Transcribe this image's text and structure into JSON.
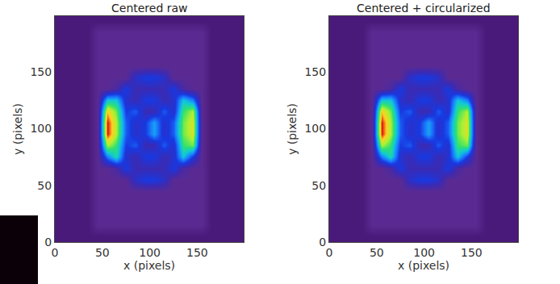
{
  "chart_data": [
    {
      "type": "heatmap",
      "title": "Centered raw",
      "x_label": "x (pixels)",
      "y_label": "y (pixels)",
      "x": [
        5,
        15,
        25,
        35,
        45,
        55,
        65,
        75,
        85,
        95,
        105,
        115,
        125,
        135,
        145,
        155,
        165,
        175,
        185,
        195
      ],
      "y": [
        5,
        15,
        25,
        35,
        45,
        55,
        65,
        75,
        85,
        95,
        105,
        115,
        125,
        135,
        145,
        155,
        165,
        175,
        185,
        195
      ],
      "cells": [
        [
          1.5,
          1.5,
          1.5,
          1.5,
          1.5,
          1.5,
          1.5,
          1.5,
          1.5,
          1.5,
          1.5,
          1.5,
          1.5,
          1.5,
          1.5,
          1.5,
          1.5,
          1.5,
          1.5,
          1.5
        ],
        [
          1.5,
          1.5,
          1.5,
          1.5,
          2,
          2,
          2,
          2,
          2,
          2,
          2,
          2,
          2,
          2,
          2,
          2,
          1.5,
          1.5,
          1.5,
          1.5
        ],
        [
          1.5,
          1.5,
          1.5,
          1.5,
          2,
          2,
          2,
          2,
          2,
          2,
          2,
          2,
          2,
          2,
          2,
          2,
          1.5,
          1.5,
          1.5,
          1.5
        ],
        [
          1.5,
          1.5,
          1.5,
          1.5,
          2,
          2,
          2,
          2,
          2,
          2,
          2,
          2,
          2,
          2,
          2,
          2,
          1.5,
          1.5,
          1.5,
          1.5
        ],
        [
          1.5,
          1.5,
          1.5,
          1.5,
          2,
          2,
          2,
          2,
          2,
          2,
          2,
          2,
          2,
          2,
          2,
          2,
          1.5,
          1.5,
          1.5,
          1.5
        ],
        [
          1.5,
          1.5,
          1.5,
          1.5,
          2,
          2,
          2,
          2,
          3.5,
          4,
          4,
          3.5,
          2,
          2,
          2,
          2,
          1.5,
          1.5,
          1.5,
          1.5
        ],
        [
          1.5,
          1.5,
          1.5,
          1.5,
          2,
          2,
          2.5,
          4,
          3,
          3,
          3,
          3,
          4,
          2.5,
          2,
          2,
          1.5,
          1.5,
          1.5,
          1.5
        ],
        [
          1.5,
          1.5,
          1.5,
          1.5,
          2,
          5,
          6.5,
          3.5,
          3,
          4,
          4,
          3,
          3.5,
          6,
          4,
          2,
          1.5,
          1.5,
          1.5,
          1.5
        ],
        [
          1.5,
          1.5,
          1.5,
          1.5,
          2,
          8,
          7,
          4,
          4.5,
          3,
          3,
          4.5,
          3.5,
          7,
          7.5,
          2,
          1.5,
          1.5,
          1.5,
          1.5
        ],
        [
          1.5,
          1.5,
          1.5,
          1.5,
          2,
          10,
          8,
          4.5,
          3.5,
          4,
          5.5,
          3.5,
          4.5,
          7.5,
          8.5,
          2,
          1.5,
          1.5,
          1.5,
          1.5
        ],
        [
          1.5,
          1.5,
          1.5,
          1.5,
          2,
          10,
          8,
          4.5,
          3.5,
          4,
          5.5,
          3.5,
          4.5,
          7.5,
          8.5,
          2,
          1.5,
          1.5,
          1.5,
          1.5
        ],
        [
          1.5,
          1.5,
          1.5,
          1.5,
          2,
          9,
          7.5,
          4,
          4.5,
          3,
          3,
          4.5,
          3.5,
          7,
          8,
          2,
          1.5,
          1.5,
          1.5,
          1.5
        ],
        [
          1.5,
          1.5,
          1.5,
          1.5,
          2,
          6,
          6,
          3.5,
          3,
          4,
          4,
          3,
          3.5,
          6,
          5,
          2,
          1.5,
          1.5,
          1.5,
          1.5
        ],
        [
          1.5,
          1.5,
          1.5,
          1.5,
          2,
          2,
          2.5,
          4,
          3,
          3,
          3,
          3,
          4,
          2.5,
          2,
          2,
          1.5,
          1.5,
          1.5,
          1.5
        ],
        [
          1.5,
          1.5,
          1.5,
          1.5,
          2,
          2,
          2,
          2,
          3.5,
          4,
          4,
          3.5,
          2,
          2,
          2,
          2,
          1.5,
          1.5,
          1.5,
          1.5
        ],
        [
          1.5,
          1.5,
          1.5,
          1.5,
          2,
          2,
          2,
          2,
          2,
          2,
          2,
          2,
          2,
          2,
          2,
          2,
          1.5,
          1.5,
          1.5,
          1.5
        ],
        [
          1.5,
          1.5,
          1.5,
          1.5,
          2,
          2,
          2,
          2,
          2,
          2,
          2,
          2,
          2,
          2,
          2,
          2,
          1.5,
          1.5,
          1.5,
          1.5
        ],
        [
          1.5,
          1.5,
          1.5,
          1.5,
          2,
          2,
          2,
          2,
          2,
          2,
          2,
          2,
          2,
          2,
          2,
          2,
          1.5,
          1.5,
          1.5,
          1.5
        ],
        [
          1.5,
          1.5,
          1.5,
          1.5,
          2,
          2,
          2,
          2,
          2,
          2,
          2,
          2,
          2,
          2,
          2,
          2,
          1.5,
          1.5,
          1.5,
          1.5
        ],
        [
          1.5,
          1.5,
          1.5,
          1.5,
          1.5,
          1.5,
          1.5,
          1.5,
          1.5,
          1.5,
          1.5,
          1.5,
          1.5,
          1.5,
          1.5,
          1.5,
          1.5,
          1.5,
          1.5,
          1.5
        ]
      ],
      "zlim": [
        0,
        10
      ],
      "xlim": [
        0,
        199
      ],
      "ylim": [
        0,
        199
      ],
      "xticks": [
        0,
        50,
        100,
        150
      ],
      "yticks": [
        0,
        50,
        100,
        150
      ]
    },
    {
      "type": "heatmap",
      "title": "Centered + circularized",
      "x_label": "x (pixels)",
      "y_label": "y (pixels)",
      "x": [
        5,
        15,
        25,
        35,
        45,
        55,
        65,
        75,
        85,
        95,
        105,
        115,
        125,
        135,
        145,
        155,
        165,
        175,
        185,
        195
      ],
      "y": [
        5,
        15,
        25,
        35,
        45,
        55,
        65,
        75,
        85,
        95,
        105,
        115,
        125,
        135,
        145,
        155,
        165,
        175,
        185,
        195
      ],
      "cells": [
        [
          1.5,
          1.5,
          1.5,
          1.5,
          1.5,
          1.5,
          1.5,
          1.5,
          1.5,
          1.5,
          1.5,
          1.5,
          1.5,
          1.5,
          1.5,
          1.5,
          1.5,
          1.5,
          1.5,
          1.5
        ],
        [
          1.5,
          1.5,
          1.5,
          1.5,
          2,
          2,
          2,
          2,
          2,
          2,
          2,
          2,
          2,
          2,
          2,
          2,
          1.5,
          1.5,
          1.5,
          1.5
        ],
        [
          1.5,
          1.5,
          1.5,
          1.5,
          2,
          2,
          2,
          2,
          2,
          2,
          2,
          2,
          2,
          2,
          2,
          2,
          1.5,
          1.5,
          1.5,
          1.5
        ],
        [
          1.5,
          1.5,
          1.5,
          1.5,
          2,
          2,
          2,
          2,
          2,
          2,
          2,
          2,
          2,
          2,
          2,
          2,
          1.5,
          1.5,
          1.5,
          1.5
        ],
        [
          1.5,
          1.5,
          1.5,
          1.5,
          2,
          2,
          2,
          2,
          2,
          2,
          2,
          2,
          2,
          2,
          2,
          2,
          1.5,
          1.5,
          1.5,
          1.5
        ],
        [
          1.5,
          1.5,
          1.5,
          1.5,
          2,
          2,
          2,
          2,
          3.5,
          4,
          4,
          3.5,
          2,
          2,
          2,
          2,
          1.5,
          1.5,
          1.5,
          1.5
        ],
        [
          1.5,
          1.5,
          1.5,
          1.5,
          2,
          2,
          2.5,
          4,
          3,
          3,
          3,
          3,
          4,
          2.5,
          2,
          2,
          1.5,
          1.5,
          1.5,
          1.5
        ],
        [
          1.5,
          1.5,
          1.5,
          1.5,
          2,
          5,
          6.5,
          3.5,
          3,
          4,
          4,
          3,
          3.5,
          6,
          4,
          2,
          1.5,
          1.5,
          1.5,
          1.5
        ],
        [
          1.5,
          1.5,
          1.5,
          1.5,
          2,
          8,
          7,
          4,
          4.5,
          3,
          3,
          4.5,
          3.5,
          7,
          7.5,
          2,
          1.5,
          1.5,
          1.5,
          1.5
        ],
        [
          1.5,
          1.5,
          1.5,
          1.5,
          2,
          10,
          8,
          4.5,
          3.5,
          4,
          5.5,
          3.5,
          4.5,
          7.5,
          8.5,
          2,
          1.5,
          1.5,
          1.5,
          1.5
        ],
        [
          1.5,
          1.5,
          1.5,
          1.5,
          2,
          10,
          8,
          4.5,
          3.5,
          4,
          5.5,
          3.5,
          4.5,
          7.5,
          8.5,
          2,
          1.5,
          1.5,
          1.5,
          1.5
        ],
        [
          1.5,
          1.5,
          1.5,
          1.5,
          2,
          9,
          7.5,
          4,
          4.5,
          3,
          3,
          4.5,
          3.5,
          7,
          8,
          2,
          1.5,
          1.5,
          1.5,
          1.5
        ],
        [
          1.5,
          1.5,
          1.5,
          1.5,
          2,
          6,
          6,
          3.5,
          3,
          4,
          4,
          3,
          3.5,
          6,
          5,
          2,
          1.5,
          1.5,
          1.5,
          1.5
        ],
        [
          1.5,
          1.5,
          1.5,
          1.5,
          2,
          2,
          2.5,
          4,
          3,
          3,
          3,
          3,
          4,
          2.5,
          2,
          2,
          1.5,
          1.5,
          1.5,
          1.5
        ],
        [
          1.5,
          1.5,
          1.5,
          1.5,
          2,
          2,
          2,
          2,
          3.5,
          4,
          4,
          3.5,
          2,
          2,
          2,
          2,
          1.5,
          1.5,
          1.5,
          1.5
        ],
        [
          1.5,
          1.5,
          1.5,
          1.5,
          2,
          2,
          2,
          2,
          2,
          2,
          2,
          2,
          2,
          2,
          2,
          2,
          1.5,
          1.5,
          1.5,
          1.5
        ],
        [
          1.5,
          1.5,
          1.5,
          1.5,
          2,
          2,
          2,
          2,
          2,
          2,
          2,
          2,
          2,
          2,
          2,
          2,
          1.5,
          1.5,
          1.5,
          1.5
        ],
        [
          1.5,
          1.5,
          1.5,
          1.5,
          2,
          2,
          2,
          2,
          2,
          2,
          2,
          2,
          2,
          2,
          2,
          2,
          1.5,
          1.5,
          1.5,
          1.5
        ],
        [
          1.5,
          1.5,
          1.5,
          1.5,
          2,
          2,
          2,
          2,
          2,
          2,
          2,
          2,
          2,
          2,
          2,
          2,
          1.5,
          1.5,
          1.5,
          1.5
        ],
        [
          1.5,
          1.5,
          1.5,
          1.5,
          1.5,
          1.5,
          1.5,
          1.5,
          1.5,
          1.5,
          1.5,
          1.5,
          1.5,
          1.5,
          1.5,
          1.5,
          1.5,
          1.5,
          1.5,
          1.5
        ]
      ],
      "zlim": [
        0,
        10
      ],
      "xlim": [
        0,
        199
      ],
      "ylim": [
        0,
        199
      ],
      "xticks": [
        0,
        50,
        100,
        150
      ],
      "yticks": [
        0,
        50,
        100,
        150
      ]
    }
  ]
}
